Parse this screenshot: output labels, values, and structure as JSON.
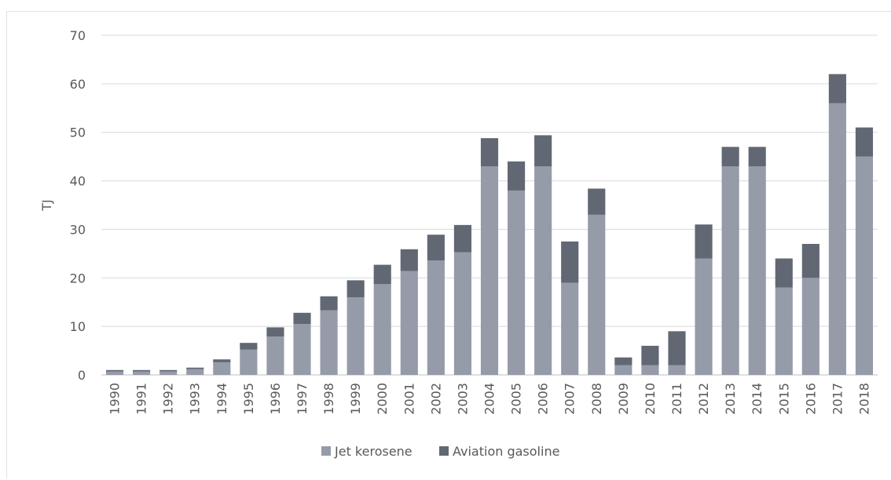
{
  "chart_data": {
    "type": "bar",
    "stacked": true,
    "ylabel": "TJ",
    "xlabel": "",
    "ylim": [
      0,
      70
    ],
    "yticks": [
      0,
      10,
      20,
      30,
      40,
      50,
      60,
      70
    ],
    "grid": true,
    "legend_position": "bottom",
    "categories": [
      "1990",
      "1991",
      "1992",
      "1993",
      "1994",
      "1995",
      "1996",
      "1997",
      "1998",
      "1999",
      "2000",
      "2001",
      "2002",
      "2003",
      "2004",
      "2005",
      "2006",
      "2007",
      "2008",
      "2009",
      "2010",
      "2011",
      "2012",
      "2013",
      "2014",
      "2015",
      "2016",
      "2017",
      "2018"
    ],
    "series": [
      {
        "name": "Jet kerosene",
        "color": "#969ba9",
        "values": [
          0.7,
          0.7,
          0.7,
          1.2,
          2.6,
          5.2,
          7.9,
          10.5,
          13.3,
          16.0,
          18.7,
          21.4,
          23.6,
          25.3,
          43.0,
          38.0,
          43.0,
          19.0,
          33.0,
          2.0,
          2.0,
          2.0,
          24.0,
          43.0,
          43.0,
          18.0,
          20.0,
          56.0,
          45.0
        ]
      },
      {
        "name": "Aviation gasoline",
        "color": "#616873",
        "values": [
          0.3,
          0.3,
          0.3,
          0.3,
          0.6,
          1.4,
          1.9,
          2.3,
          2.9,
          3.5,
          4.0,
          4.5,
          5.3,
          5.6,
          5.8,
          6.0,
          6.4,
          8.5,
          5.4,
          1.6,
          4.0,
          7.0,
          7.0,
          4.0,
          4.0,
          6.0,
          7.0,
          6.0,
          6.0
        ]
      }
    ]
  }
}
